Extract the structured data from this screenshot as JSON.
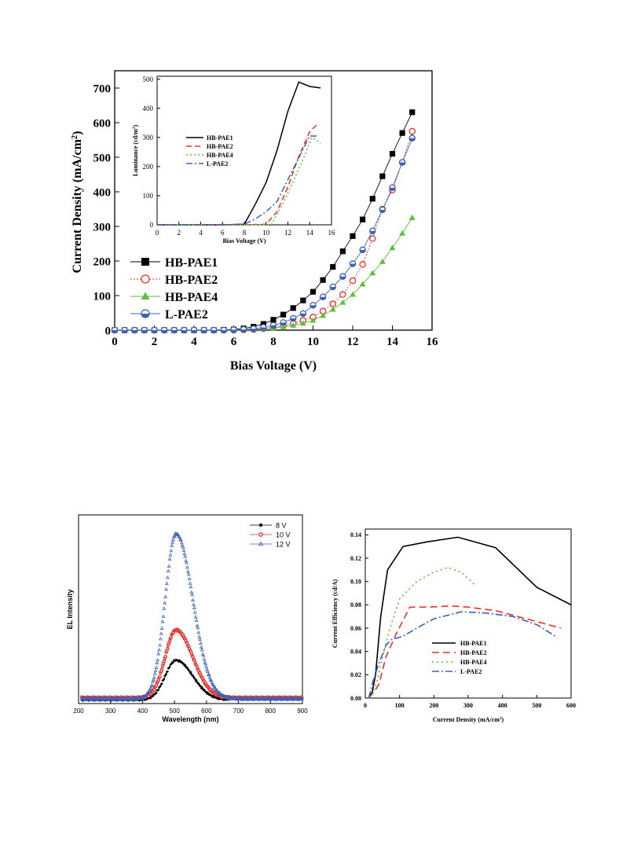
{
  "charts": {
    "iv": {
      "type": "scatter",
      "ylabel_main": "Current Density (mA/cm",
      "ylabel_sup": "2",
      "ylabel_close": ")",
      "xlabel": "Bias Voltage (V)",
      "xlim": [
        0,
        16
      ],
      "ylim": [
        0,
        750
      ],
      "xticks": [
        0,
        2,
        4,
        6,
        8,
        10,
        12,
        14,
        16
      ],
      "yticks": [
        0,
        100,
        200,
        300,
        400,
        500,
        600,
        700
      ],
      "legend_position": "lower-left",
      "series": [
        {
          "name": "HB-PAE1",
          "color": "#000000",
          "marker": "square",
          "x": [
            0,
            0.5,
            1,
            1.5,
            2,
            2.5,
            3,
            3.5,
            4,
            4.5,
            5,
            5.5,
            6,
            6.5,
            7,
            7.5,
            8,
            8.5,
            9,
            9.5,
            10,
            10.5,
            11,
            11.5,
            12,
            12.5,
            13,
            13.5,
            14,
            14.5,
            15
          ],
          "y": [
            0,
            0,
            0,
            0,
            0,
            0,
            0,
            0,
            0,
            0,
            0,
            1,
            2,
            5,
            10,
            18,
            30,
            45,
            64,
            86,
            111,
            145,
            183,
            228,
            272,
            320,
            380,
            445,
            510,
            570,
            630
          ]
        },
        {
          "name": "HB-PAE2",
          "color": "#e8322d",
          "marker": "open-circle",
          "x": [
            0,
            0.5,
            1,
            1.5,
            2,
            2.5,
            3,
            3.5,
            4,
            4.5,
            5,
            5.5,
            6,
            6.5,
            7,
            7.5,
            8,
            8.5,
            9,
            9.5,
            10,
            10.5,
            11,
            11.5,
            12,
            12.5,
            13,
            13.5,
            14,
            14.5,
            15
          ],
          "y": [
            0,
            0,
            0,
            0,
            0,
            0,
            0,
            0,
            0,
            0,
            0,
            0,
            0,
            1,
            2,
            4,
            8,
            13,
            20,
            28,
            38,
            55,
            76,
            103,
            143,
            190,
            265,
            350,
            405,
            485,
            575
          ]
        },
        {
          "name": "HB-PAE4",
          "color": "#5bbf3a",
          "marker": "triangle",
          "x": [
            0,
            0.5,
            1,
            1.5,
            2,
            2.5,
            3,
            3.5,
            4,
            4.5,
            5,
            5.5,
            6,
            6.5,
            7,
            7.5,
            8,
            8.5,
            9,
            9.5,
            10,
            10.5,
            11,
            11.5,
            12,
            12.5,
            13,
            13.5,
            14,
            14.5,
            15
          ],
          "y": [
            0,
            0,
            0,
            0,
            0,
            0,
            0,
            0,
            0,
            0,
            0,
            0,
            0,
            1,
            2,
            3,
            6,
            9,
            14,
            20,
            28,
            42,
            60,
            80,
            103,
            133,
            165,
            198,
            238,
            280,
            325
          ]
        },
        {
          "name": "L-PAE2",
          "color": "#3b62b5",
          "marker": "half-circle",
          "x": [
            0,
            0.5,
            1,
            1.5,
            2,
            2.5,
            3,
            3.5,
            4,
            4.5,
            5,
            5.5,
            6,
            6.5,
            7,
            7.5,
            8,
            8.5,
            9,
            9.5,
            10,
            10.5,
            11,
            11.5,
            12,
            12.5,
            13,
            13.5,
            14,
            14.5,
            15
          ],
          "y": [
            0,
            0,
            0,
            0,
            0,
            0,
            0,
            0,
            0,
            0,
            0,
            0,
            1,
            2,
            4,
            8,
            14,
            22,
            34,
            48,
            72,
            96,
            125,
            155,
            192,
            232,
            287,
            348,
            412,
            485,
            555
          ]
        }
      ]
    },
    "lum": {
      "type": "line",
      "ylabel_main": "Luminance (cd/m",
      "ylabel_sup": "2",
      "ylabel_close": ")",
      "xlabel": "Bias Voltage (V)",
      "xlim": [
        0,
        16
      ],
      "ylim": [
        0,
        510
      ],
      "xticks": [
        0,
        2,
        4,
        6,
        8,
        10,
        12,
        14,
        16
      ],
      "yticks": [
        0,
        100,
        200,
        300,
        400,
        500
      ],
      "legend_position": "left",
      "series": [
        {
          "name": "HB-PAE1",
          "color": "#000000",
          "dash": "",
          "x": [
            0,
            6,
            8,
            9,
            10,
            11,
            12,
            13,
            14,
            15
          ],
          "y": [
            0,
            0,
            2,
            70,
            145,
            255,
            390,
            490,
            475,
            470
          ]
        },
        {
          "name": "HB-PAE2",
          "color": "#e8322d",
          "dash": "7,4",
          "x": [
            0,
            8,
            10,
            11,
            12,
            13,
            14,
            14.7
          ],
          "y": [
            0,
            0,
            2,
            45,
            130,
            235,
            320,
            345
          ]
        },
        {
          "name": "HB-PAE4",
          "color": "#5bbf3a",
          "dash": "2,3",
          "x": [
            0,
            9,
            10.5,
            11.5,
            12.5,
            13.5,
            14.2,
            15
          ],
          "y": [
            0,
            0,
            2,
            70,
            150,
            235,
            300,
            280
          ]
        },
        {
          "name": "L-PAE2",
          "color": "#3b62b5",
          "dash": "8,3,2,3",
          "x": [
            0,
            6,
            8,
            9,
            10,
            11,
            12,
            13,
            14,
            14.8
          ],
          "y": [
            0,
            0,
            2,
            20,
            45,
            80,
            155,
            230,
            305,
            305
          ]
        }
      ]
    },
    "el": {
      "type": "scatter",
      "ylabel": "EL Intensity",
      "xlabel": "Wavelength (nm)",
      "xlim": [
        200,
        900
      ],
      "ylim": [
        0,
        1.0
      ],
      "xticks": [
        200,
        300,
        400,
        500,
        600,
        700,
        800,
        900
      ],
      "yticks": [],
      "legend_position": "top-right",
      "peak_nm": 505,
      "series": [
        {
          "name": "8 V",
          "color": "#000000",
          "marker": "filled-circle",
          "peak": 0.23,
          "baseline": 0.02,
          "x_end": 670
        },
        {
          "name": "10 V",
          "color": "#e8322d",
          "marker": "open-circle",
          "peak": 0.39,
          "baseline": 0.03,
          "x_end": 900
        },
        {
          "name": "12 V",
          "color": "#3b62b5",
          "marker": "open-triangle",
          "peak": 0.9,
          "baseline": 0.025,
          "x_end": 900
        }
      ]
    },
    "ce": {
      "type": "line",
      "ylabel": "Current Efficiency (cd/A)",
      "xlabel_main": "Current Density (mA/cm",
      "xlabel_sup": "2",
      "xlabel_close": ")",
      "xlim": [
        0,
        600
      ],
      "ylim": [
        0,
        0.145
      ],
      "xticks": [
        0,
        100,
        200,
        300,
        400,
        500,
        600
      ],
      "yticks": [
        0.0,
        0.02,
        0.04,
        0.06,
        0.08,
        0.1,
        0.12,
        0.14
      ],
      "legend_position": "lower-center",
      "series": [
        {
          "name": "HB-PAE1",
          "color": "#000000",
          "dash": "",
          "x": [
            10,
            20,
            30,
            45,
            65,
            110,
            180,
            270,
            380,
            500,
            600
          ],
          "y": [
            0,
            0.005,
            0.02,
            0.07,
            0.11,
            0.13,
            0.134,
            0.138,
            0.129,
            0.095,
            0.08
          ]
        },
        {
          "name": "HB-PAE2",
          "color": "#e8322d",
          "dash": "9,5",
          "x": [
            10,
            25,
            40,
            60,
            90,
            130,
            180,
            250,
            300,
            380,
            470,
            570
          ],
          "y": [
            0,
            0.005,
            0.012,
            0.035,
            0.055,
            0.078,
            0.078,
            0.079,
            0.078,
            0.075,
            0.068,
            0.06
          ]
        },
        {
          "name": "HB-PAE4",
          "color": "#5bbf3a",
          "dash": "2,4",
          "x": [
            10,
            20,
            35,
            50,
            70,
            100,
            150,
            200,
            240,
            280,
            320
          ],
          "y": [
            0,
            0.003,
            0.015,
            0.035,
            0.058,
            0.085,
            0.1,
            0.108,
            0.112,
            0.108,
            0.097
          ]
        },
        {
          "name": "L-PAE2",
          "color": "#3b62b5",
          "dash": "9,3,2,3",
          "x": [
            10,
            20,
            40,
            60,
            75,
            110,
            150,
            200,
            280,
            350,
            430,
            500,
            560
          ],
          "y": [
            0,
            0.012,
            0.03,
            0.045,
            0.05,
            0.053,
            0.06,
            0.068,
            0.074,
            0.073,
            0.07,
            0.063,
            0.052
          ]
        }
      ]
    }
  }
}
